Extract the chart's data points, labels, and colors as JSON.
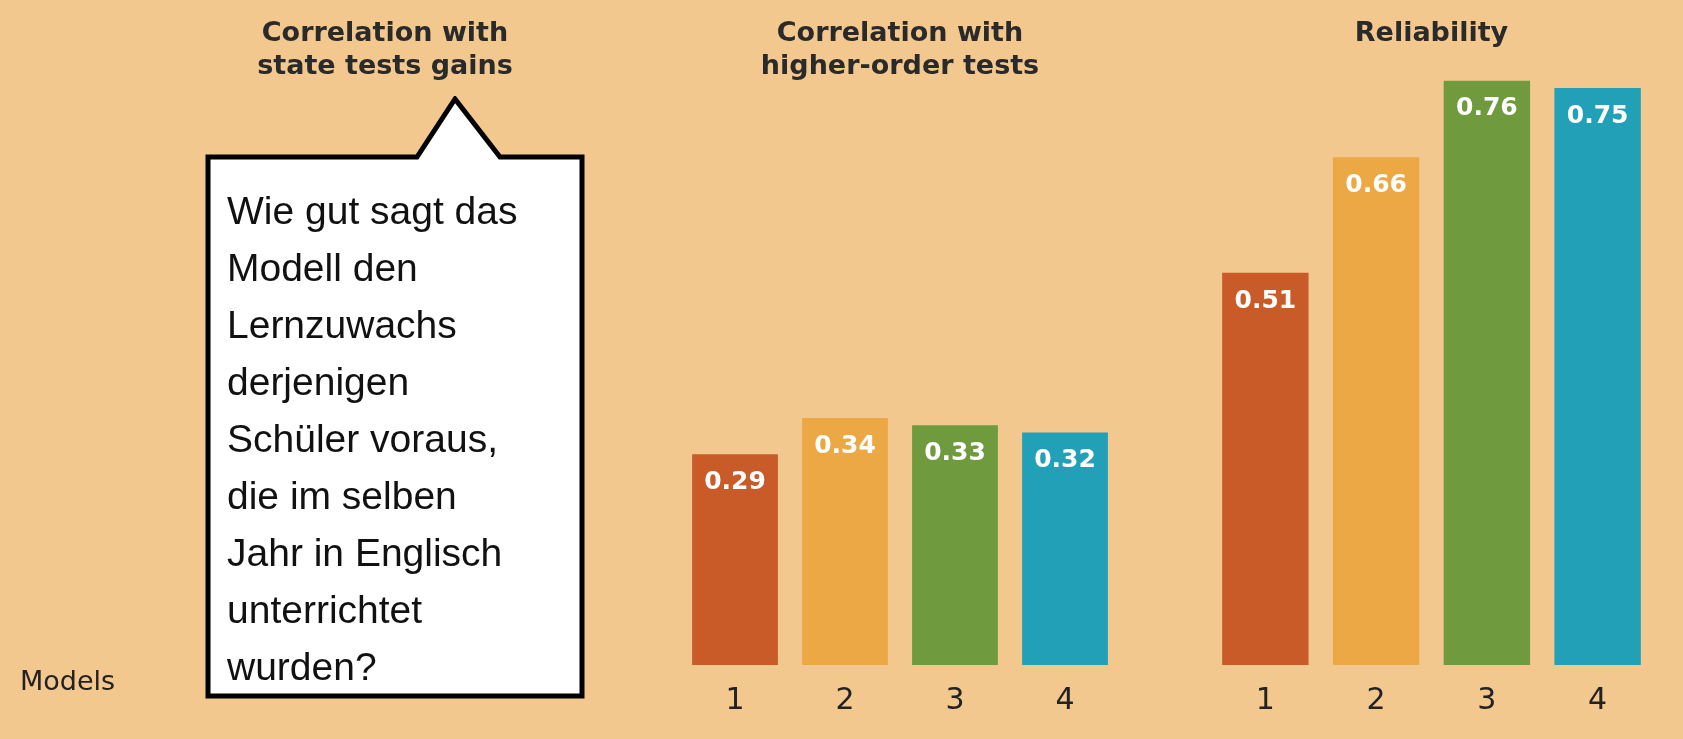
{
  "chart_data": [
    {
      "type": "other",
      "title": "Correlation with state tests gains",
      "xlabel": "Models",
      "annotations": [
        "Wie gut sagt das Modell den Lernzuwachs derjenigen Schüler voraus, die im selben Jahr in Englisch unterrichtet wurden?"
      ]
    },
    {
      "type": "bar",
      "title": "Correlation with higher-order tests",
      "categories": [
        "1",
        "2",
        "3",
        "4"
      ],
      "colors": [
        "#c95b29",
        "#eca845",
        "#6f9a3d",
        "#21a0b8"
      ],
      "values": [
        0.29,
        0.34,
        0.33,
        0.32
      ],
      "data_labels": true
    },
    {
      "type": "bar",
      "title": "Reliability",
      "categories": [
        "1",
        "2",
        "3",
        "4"
      ],
      "colors": [
        "#c95b29",
        "#eca845",
        "#6f9a3d",
        "#21a0b8"
      ],
      "values": [
        0.51,
        0.66,
        0.76,
        0.75
      ],
      "data_labels": true
    }
  ]
}
